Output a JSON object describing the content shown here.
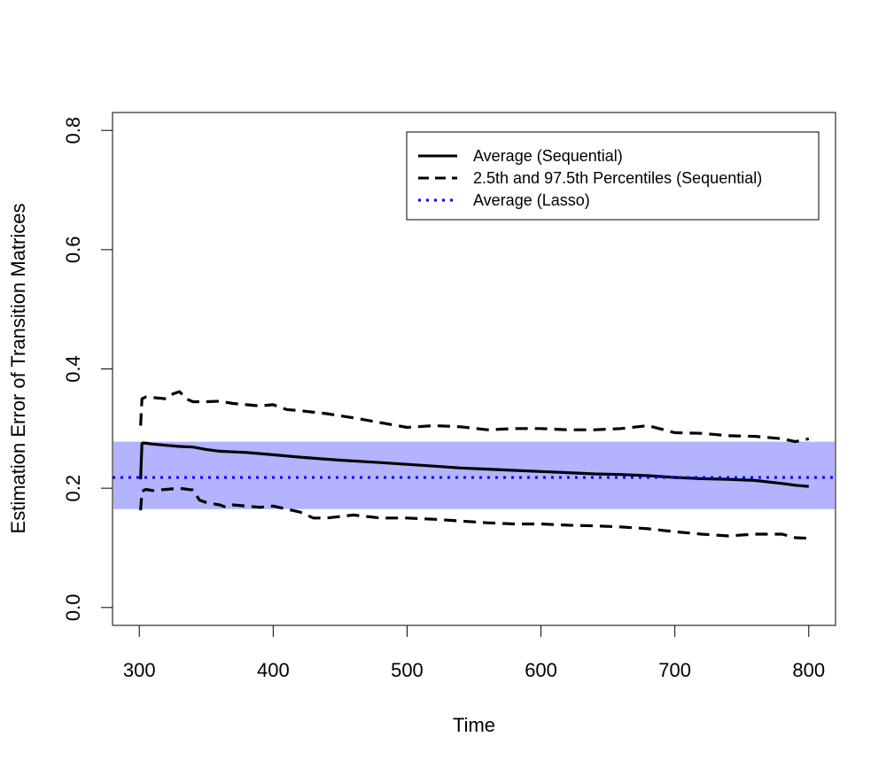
{
  "chart_data": {
    "type": "line",
    "title": "",
    "xlabel": "Time",
    "ylabel": "Estimation Error of Transition Matrices",
    "xlim": [
      280,
      820
    ],
    "ylim": [
      -0.03,
      0.83
    ],
    "xticks": [
      300,
      400,
      500,
      600,
      700,
      800
    ],
    "yticks": [
      0.0,
      0.2,
      0.4,
      0.6,
      0.8
    ],
    "xtick_labels": [
      "300",
      "400",
      "500",
      "600",
      "700",
      "800"
    ],
    "ytick_labels": [
      "0.0",
      "0.2",
      "0.4",
      "0.6",
      "0.8"
    ],
    "band": {
      "name": "Lasso interval",
      "lower": 0.165,
      "upper": 0.278,
      "color": "#b3b3ff"
    },
    "series": [
      {
        "name": "Average (Sequential)",
        "style": "solid",
        "color": "#000000",
        "x": [
          301,
          302,
          303,
          310,
          320,
          330,
          340,
          350,
          360,
          380,
          400,
          420,
          450,
          480,
          500,
          520,
          540,
          560,
          580,
          600,
          620,
          640,
          660,
          680,
          700,
          720,
          740,
          760,
          780,
          790,
          800
        ],
        "values": [
          0.215,
          0.275,
          0.276,
          0.274,
          0.272,
          0.27,
          0.269,
          0.265,
          0.262,
          0.26,
          0.256,
          0.252,
          0.247,
          0.243,
          0.24,
          0.237,
          0.234,
          0.232,
          0.23,
          0.228,
          0.226,
          0.224,
          0.223,
          0.221,
          0.218,
          0.216,
          0.215,
          0.213,
          0.208,
          0.205,
          0.203
        ]
      },
      {
        "name": "2.5th and 97.5th Percentiles (Sequential)",
        "style": "dashed",
        "color": "#000000",
        "x": [
          301,
          302,
          305,
          310,
          320,
          325,
          330,
          335,
          340,
          350,
          360,
          370,
          380,
          390,
          400,
          410,
          420,
          440,
          460,
          480,
          500,
          520,
          540,
          560,
          580,
          600,
          620,
          640,
          660,
          680,
          700,
          720,
          740,
          760,
          780,
          790,
          800
        ],
        "values": [
          0.305,
          0.35,
          0.353,
          0.352,
          0.35,
          0.358,
          0.362,
          0.35,
          0.345,
          0.345,
          0.346,
          0.342,
          0.34,
          0.338,
          0.34,
          0.332,
          0.33,
          0.325,
          0.318,
          0.31,
          0.302,
          0.305,
          0.303,
          0.298,
          0.3,
          0.3,
          0.298,
          0.298,
          0.3,
          0.305,
          0.293,
          0.292,
          0.288,
          0.287,
          0.283,
          0.278,
          0.283
        ]
      },
      {
        "name": "2.5th Percentile (Sequential)",
        "legend": false,
        "style": "dashed",
        "color": "#000000",
        "x": [
          301,
          302,
          305,
          310,
          320,
          330,
          340,
          345,
          350,
          360,
          365,
          370,
          380,
          390,
          400,
          410,
          420,
          430,
          440,
          460,
          480,
          500,
          520,
          540,
          560,
          580,
          600,
          620,
          640,
          660,
          680,
          700,
          720,
          740,
          760,
          780,
          790,
          800
        ],
        "values": [
          0.163,
          0.195,
          0.198,
          0.196,
          0.198,
          0.2,
          0.197,
          0.18,
          0.176,
          0.172,
          0.168,
          0.172,
          0.17,
          0.168,
          0.17,
          0.165,
          0.16,
          0.15,
          0.15,
          0.155,
          0.15,
          0.15,
          0.148,
          0.145,
          0.142,
          0.14,
          0.14,
          0.138,
          0.137,
          0.135,
          0.132,
          0.127,
          0.123,
          0.12,
          0.123,
          0.123,
          0.117,
          0.116
        ]
      },
      {
        "name": "Average (Lasso)",
        "style": "dotted",
        "color": "#0000ff",
        "x": [
          280,
          820
        ],
        "values": [
          0.218,
          0.218
        ]
      }
    ],
    "legend_position": "top-right",
    "legend_entries": [
      {
        "label": "Average (Sequential)",
        "style": "solid",
        "color": "#000000"
      },
      {
        "label": "2.5th and 97.5th Percentiles (Sequential)",
        "style": "dashed",
        "color": "#000000"
      },
      {
        "label": "Average (Lasso)",
        "style": "dotted",
        "color": "#0000ff"
      }
    ]
  }
}
